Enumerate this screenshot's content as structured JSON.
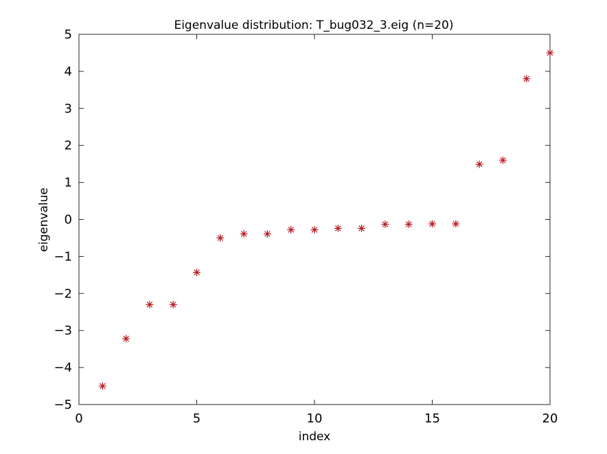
{
  "chart_data": {
    "type": "scatter",
    "title": "Eigenvalue distribution: T_bug032_3.eig (n=20)",
    "xlabel": "index",
    "ylabel": "eigenvalue",
    "xlim": [
      0,
      20
    ],
    "ylim": [
      -5,
      5
    ],
    "xticks": [
      0,
      5,
      10,
      15,
      20
    ],
    "yticks": [
      -5,
      -4,
      -3,
      -2,
      -1,
      0,
      1,
      2,
      3,
      4,
      5
    ],
    "x_tick_labels": [
      "0",
      "5",
      "10",
      "15",
      "20"
    ],
    "y_tick_labels": [
      "−5",
      "−4",
      "−3",
      "−2",
      "−1",
      "0",
      "1",
      "2",
      "3",
      "4",
      "5"
    ],
    "grid": false,
    "marker": "asterisk",
    "marker_color": "#b5191f",
    "series": [
      {
        "x": [
          1,
          2,
          3,
          4,
          5,
          6,
          7,
          8,
          9,
          10,
          11,
          12,
          13,
          14,
          15,
          16,
          17,
          18,
          19,
          20
        ],
        "y": [
          -4.5,
          -3.22,
          -2.3,
          -2.3,
          -1.43,
          -0.5,
          -0.39,
          -0.39,
          -0.28,
          -0.28,
          -0.24,
          -0.24,
          -0.13,
          -0.13,
          -0.12,
          -0.12,
          1.49,
          1.6,
          3.8,
          4.5
        ]
      }
    ]
  }
}
